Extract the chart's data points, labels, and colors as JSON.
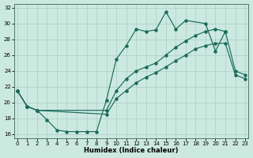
{
  "xlabel": "Humidex (Indice chaleur)",
  "xlim": [
    -0.3,
    23.3
  ],
  "ylim": [
    15.5,
    32.5
  ],
  "xticks": [
    0,
    1,
    2,
    3,
    4,
    5,
    6,
    7,
    8,
    9,
    10,
    11,
    12,
    13,
    14,
    15,
    16,
    17,
    18,
    19,
    20,
    21,
    22,
    23
  ],
  "yticks": [
    16,
    18,
    20,
    22,
    24,
    26,
    28,
    30,
    32
  ],
  "bg_color": "#cce9e0",
  "line_color": "#1a6b5a",
  "grid_color": "#aacdc5",
  "curve1_x": [
    0,
    1,
    2,
    3,
    4,
    5,
    6,
    7,
    8,
    9,
    10,
    11,
    12,
    13,
    14,
    15,
    16,
    17,
    19,
    20,
    21
  ],
  "curve1_y": [
    21.5,
    19.5,
    19.0,
    17.8,
    16.5,
    16.3,
    16.3,
    16.3,
    16.3,
    20.3,
    25.5,
    27.2,
    29.3,
    29.0,
    29.2,
    31.5,
    29.3,
    30.4,
    30.0,
    26.5,
    29.0
  ],
  "curve2_x": [
    0,
    1,
    2,
    9,
    10,
    11,
    12,
    13,
    14,
    15,
    16,
    17,
    18,
    19,
    20,
    21,
    22,
    23
  ],
  "curve2_y": [
    21.5,
    19.5,
    19.0,
    19.0,
    21.5,
    23.0,
    24.0,
    24.5,
    25.0,
    26.0,
    27.0,
    27.8,
    28.5,
    29.0,
    29.3,
    29.0,
    24.0,
    23.5
  ],
  "curve3_x": [
    0,
    1,
    2,
    9,
    10,
    11,
    12,
    13,
    14,
    15,
    16,
    17,
    18,
    19,
    20,
    21,
    22,
    23
  ],
  "curve3_y": [
    21.5,
    19.5,
    19.0,
    18.5,
    20.5,
    21.5,
    22.5,
    23.2,
    23.8,
    24.5,
    25.3,
    26.0,
    26.8,
    27.2,
    27.5,
    27.5,
    23.5,
    23.0
  ]
}
